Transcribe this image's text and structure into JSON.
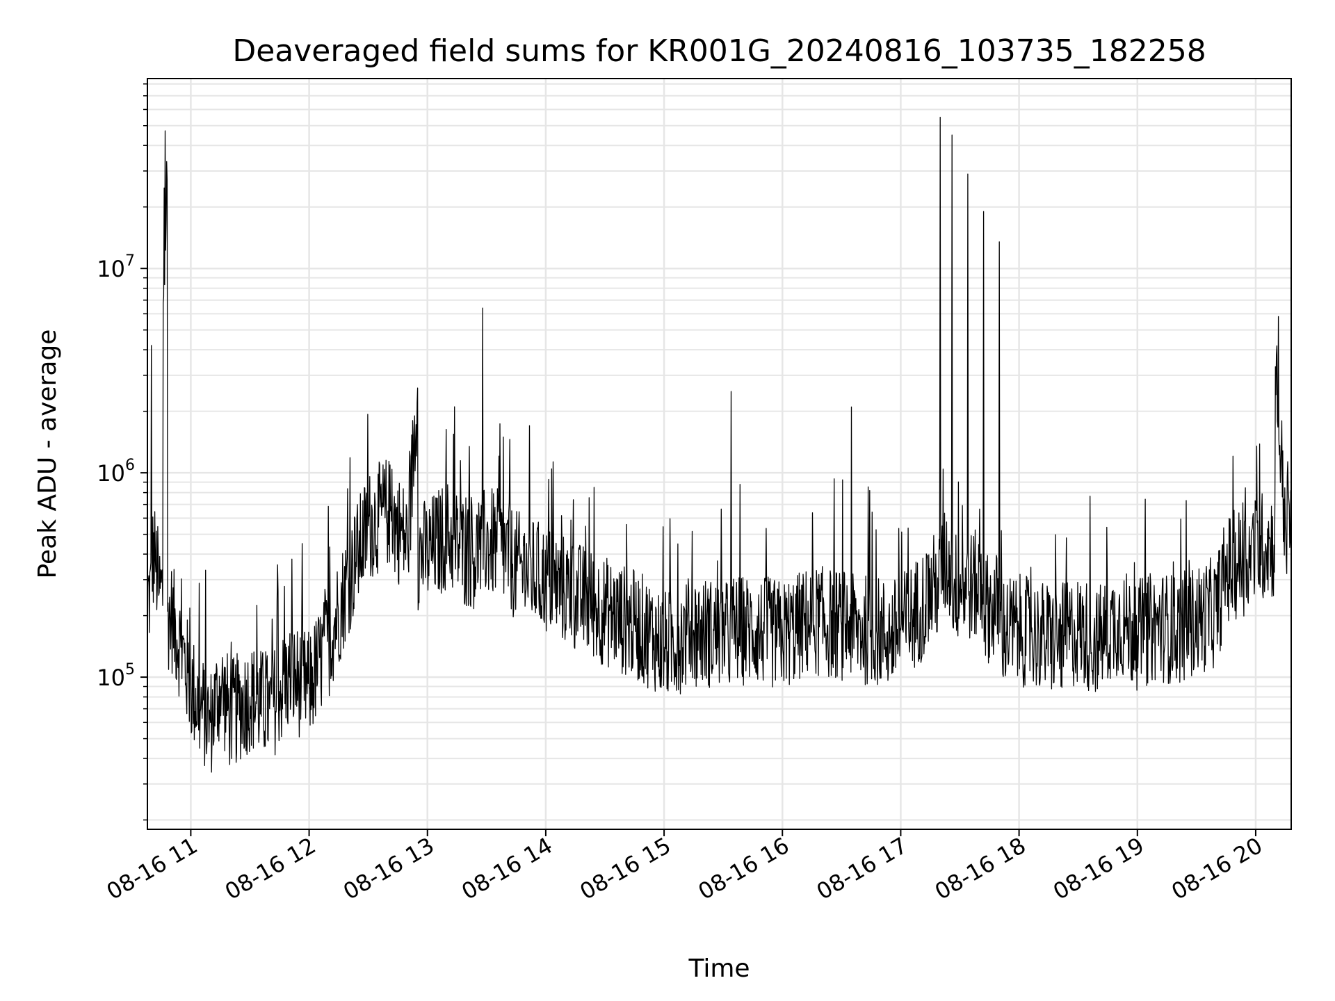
{
  "chart_data": {
    "type": "line",
    "title": "Deaveraged field sums for KR001G_20240816_103735_182258",
    "xlabel": "Time",
    "ylabel": "Peak ADU - average",
    "y_scale": "log",
    "grid": true,
    "line_color": "#000000",
    "grid_color": "#e6e6e6",
    "xlim": [
      "2024-08-16 10:38",
      "2024-08-16 20:18"
    ],
    "ylim": [
      18000,
      85000000
    ],
    "x_ticks": [
      {
        "value": "2024-08-16 11:00",
        "label": "08-16 11"
      },
      {
        "value": "2024-08-16 12:00",
        "label": "08-16 12"
      },
      {
        "value": "2024-08-16 13:00",
        "label": "08-16 13"
      },
      {
        "value": "2024-08-16 14:00",
        "label": "08-16 14"
      },
      {
        "value": "2024-08-16 15:00",
        "label": "08-16 15"
      },
      {
        "value": "2024-08-16 16:00",
        "label": "08-16 16"
      },
      {
        "value": "2024-08-16 17:00",
        "label": "08-16 17"
      },
      {
        "value": "2024-08-16 18:00",
        "label": "08-16 18"
      },
      {
        "value": "2024-08-16 19:00",
        "label": "08-16 19"
      },
      {
        "value": "2024-08-16 20:00",
        "label": "08-16 20"
      }
    ],
    "y_ticks": [
      {
        "value": 100000,
        "base": "10",
        "exp": "5"
      },
      {
        "value": 1000000,
        "base": "10",
        "exp": "6"
      },
      {
        "value": 10000000,
        "base": "10",
        "exp": "7"
      }
    ],
    "series": [
      {
        "x": [
          "2024-08-16 10:38",
          "2024-08-16 10:40",
          "2024-08-16 10:42",
          "2024-08-16 10:44",
          "2024-08-16 10:46",
          "2024-08-16 10:48",
          "2024-08-16 10:50",
          "2024-08-16 10:55",
          "2024-08-16 11:00",
          "2024-08-16 11:05",
          "2024-08-16 11:10",
          "2024-08-16 11:15",
          "2024-08-16 11:20",
          "2024-08-16 11:30",
          "2024-08-16 11:40",
          "2024-08-16 11:45",
          "2024-08-16 11:50",
          "2024-08-16 12:00",
          "2024-08-16 12:10",
          "2024-08-16 12:20",
          "2024-08-16 12:30",
          "2024-08-16 12:40",
          "2024-08-16 12:50",
          "2024-08-16 12:55",
          "2024-08-16 13:00",
          "2024-08-16 13:10",
          "2024-08-16 13:20",
          "2024-08-16 13:28",
          "2024-08-16 13:35",
          "2024-08-16 13:45",
          "2024-08-16 14:00",
          "2024-08-16 14:15",
          "2024-08-16 14:30",
          "2024-08-16 14:45",
          "2024-08-16 14:55",
          "2024-08-16 15:00",
          "2024-08-16 15:15",
          "2024-08-16 15:30",
          "2024-08-16 15:34",
          "2024-08-16 15:45",
          "2024-08-16 16:00",
          "2024-08-16 16:15",
          "2024-08-16 16:30",
          "2024-08-16 16:35",
          "2024-08-16 16:45",
          "2024-08-16 16:55",
          "2024-08-16 17:00",
          "2024-08-16 17:10",
          "2024-08-16 17:18",
          "2024-08-16 17:20",
          "2024-08-16 17:23",
          "2024-08-16 17:26",
          "2024-08-16 17:30",
          "2024-08-16 17:34",
          "2024-08-16 17:38",
          "2024-08-16 17:42",
          "2024-08-16 17:46",
          "2024-08-16 17:50",
          "2024-08-16 18:00",
          "2024-08-16 18:10",
          "2024-08-16 18:20",
          "2024-08-16 18:30",
          "2024-08-16 18:40",
          "2024-08-16 18:50",
          "2024-08-16 19:00",
          "2024-08-16 19:10",
          "2024-08-16 19:20",
          "2024-08-16 19:30",
          "2024-08-16 19:40",
          "2024-08-16 19:45",
          "2024-08-16 19:55",
          "2024-08-16 20:05",
          "2024-08-16 20:10",
          "2024-08-16 20:15",
          "2024-08-16 20:18"
        ],
        "y": [
          250000,
          4200000,
          380000,
          260000,
          6800000,
          27000000,
          200000,
          140000,
          90000,
          70000,
          60000,
          90000,
          65000,
          80000,
          70000,
          85000,
          100000,
          90000,
          150000,
          300000,
          550000,
          650000,
          450000,
          2600000,
          400000,
          500000,
          400000,
          6400000,
          450000,
          350000,
          300000,
          250000,
          210000,
          180000,
          160000,
          140000,
          170000,
          160000,
          2500000,
          170000,
          160000,
          190000,
          180000,
          2100000,
          170000,
          160000,
          170000,
          220000,
          280000,
          55000000,
          350000,
          45000000,
          280000,
          29000000,
          280000,
          19000000,
          220000,
          13500000,
          170000,
          160000,
          150000,
          170000,
          150000,
          190000,
          160000,
          180000,
          170000,
          190000,
          210000,
          330000,
          380000,
          450000,
          3300000,
          550000,
          500000
        ]
      }
    ]
  }
}
